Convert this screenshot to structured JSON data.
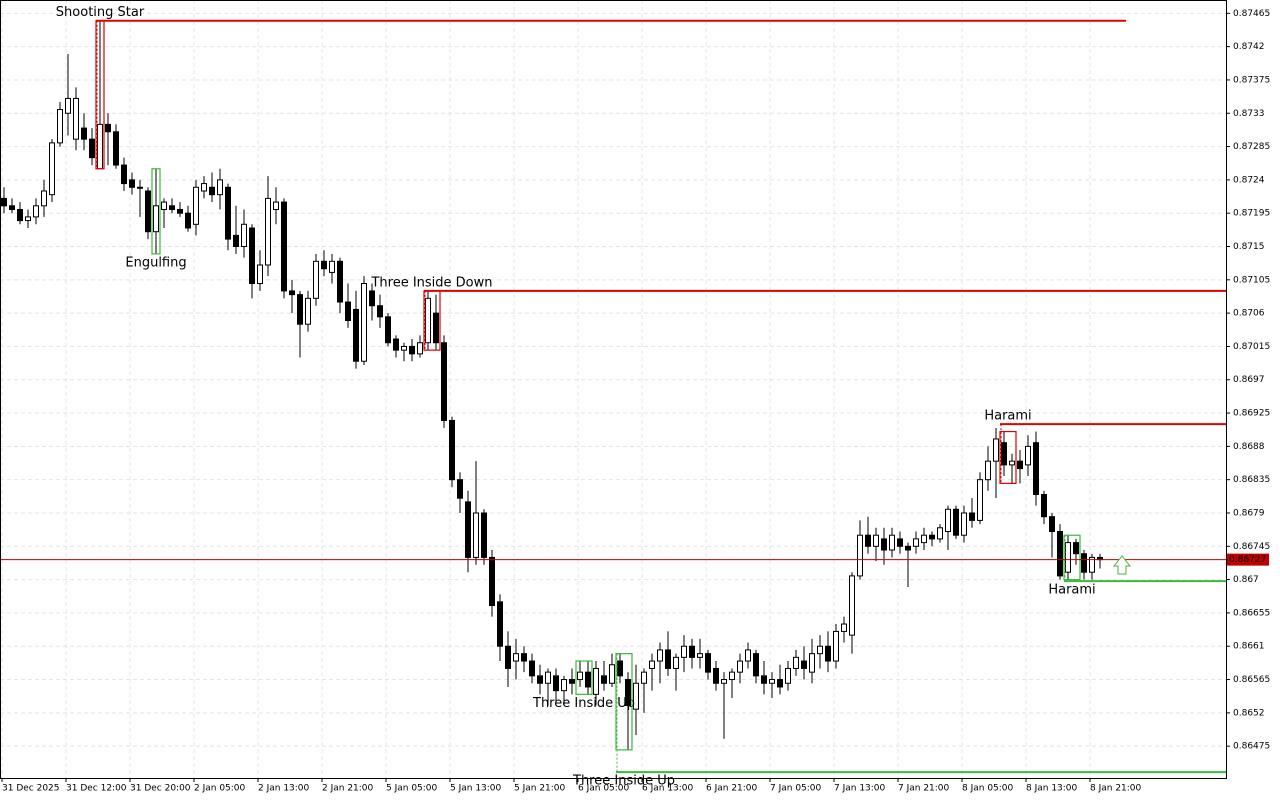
{
  "chart_data": {
    "type": "candlestick",
    "ylim": [
      0.86432,
      0.87483
    ],
    "yticks": [
      0.87465,
      0.8742,
      0.87375,
      0.8733,
      0.87285,
      0.8724,
      0.87195,
      0.8715,
      0.87105,
      0.8706,
      0.87015,
      0.8697,
      0.86925,
      0.8688,
      0.86835,
      0.8679,
      0.86745,
      0.867,
      0.86655,
      0.8661,
      0.86565,
      0.8652,
      0.86475
    ],
    "grid": true,
    "bull_color": "#ffffff",
    "bear_color": "#000000",
    "x": [
      "31 Dec 2025",
      null,
      null,
      null,
      null,
      null,
      null,
      null,
      "31 Dec 12:00",
      null,
      null,
      null,
      null,
      null,
      null,
      null,
      "31 Dec 20:00",
      null,
      null,
      null,
      null,
      null,
      null,
      null,
      "2 Jan 05:00",
      null,
      null,
      null,
      null,
      null,
      null,
      null,
      "2 Jan 13:00",
      null,
      null,
      null,
      null,
      null,
      null,
      null,
      "2 Jan 21:00",
      null,
      null,
      null,
      null,
      null,
      null,
      null,
      "5 Jan 05:00",
      null,
      null,
      null,
      null,
      null,
      null,
      null,
      "5 Jan 13:00",
      null,
      null,
      null,
      null,
      null,
      null,
      null,
      "5 Jan 21:00",
      null,
      null,
      null,
      null,
      null,
      null,
      null,
      "6 Jan 05:00",
      null,
      null,
      null,
      null,
      null,
      null,
      null,
      "6 Jan 13:00",
      null,
      null,
      null,
      null,
      null,
      null,
      null,
      "6 Jan 21:00",
      null,
      null,
      null,
      null,
      null,
      null,
      null,
      "7 Jan 05:00",
      null,
      null,
      null,
      null,
      null,
      null,
      null,
      "7 Jan 13:00",
      null,
      null,
      null,
      null,
      null,
      null,
      null,
      "7 Jan 21:00",
      null,
      null,
      null,
      null,
      null,
      null,
      null,
      "8 Jan 05:00",
      null,
      null,
      null,
      null,
      null,
      null,
      null,
      "8 Jan 13:00",
      null,
      null,
      null,
      null,
      null,
      null,
      null,
      "8 Jan 21:00",
      null
    ],
    "candles": [
      [
        0.87215,
        0.8723,
        0.87195,
        0.87205
      ],
      [
        0.87205,
        0.87215,
        0.87195,
        0.872
      ],
      [
        0.872,
        0.8721,
        0.8718,
        0.87185
      ],
      [
        0.87185,
        0.872,
        0.87175,
        0.8719
      ],
      [
        0.8719,
        0.87215,
        0.8718,
        0.87205
      ],
      [
        0.87205,
        0.8724,
        0.8719,
        0.87225
      ],
      [
        0.8722,
        0.87295,
        0.8721,
        0.8729
      ],
      [
        0.8729,
        0.87345,
        0.87285,
        0.87335
      ],
      [
        0.8733,
        0.8741,
        0.873,
        0.8735
      ],
      [
        0.87295,
        0.87365,
        0.8728,
        0.8735
      ],
      [
        0.8731,
        0.8733,
        0.8728,
        0.87295
      ],
      [
        0.87295,
        0.8731,
        0.8726,
        0.8727
      ],
      [
        0.87255,
        0.87455,
        0.87255,
        0.87315
      ],
      [
        0.87315,
        0.8733,
        0.8726,
        0.87305
      ],
      [
        0.87305,
        0.87315,
        0.87255,
        0.8726
      ],
      [
        0.8726,
        0.8727,
        0.87225,
        0.87235
      ],
      [
        0.8724,
        0.8725,
        0.8722,
        0.8723
      ],
      [
        0.8723,
        0.8724,
        0.8719,
        0.8723
      ],
      [
        0.87225,
        0.8723,
        0.8716,
        0.8717
      ],
      [
        0.8717,
        0.87255,
        0.8714,
        0.87205
      ],
      [
        0.872,
        0.87215,
        0.87175,
        0.8721
      ],
      [
        0.87205,
        0.87215,
        0.87195,
        0.872
      ],
      [
        0.872,
        0.8721,
        0.8719,
        0.87195
      ],
      [
        0.87195,
        0.87205,
        0.8717,
        0.87175
      ],
      [
        0.8718,
        0.8724,
        0.87165,
        0.8723
      ],
      [
        0.87225,
        0.87245,
        0.87215,
        0.87235
      ],
      [
        0.8723,
        0.8725,
        0.8721,
        0.8722
      ],
      [
        0.8722,
        0.87255,
        0.872,
        0.8724
      ],
      [
        0.8723,
        0.87235,
        0.87145,
        0.8716
      ],
      [
        0.87165,
        0.87205,
        0.8714,
        0.8715
      ],
      [
        0.8715,
        0.872,
        0.87135,
        0.8718
      ],
      [
        0.87175,
        0.8718,
        0.8708,
        0.871
      ],
      [
        0.871,
        0.87145,
        0.8709,
        0.87125
      ],
      [
        0.87125,
        0.87245,
        0.8711,
        0.87215
      ],
      [
        0.872,
        0.8723,
        0.8718,
        0.8721
      ],
      [
        0.8721,
        0.87215,
        0.8708,
        0.8709
      ],
      [
        0.8709,
        0.87105,
        0.8706,
        0.87085
      ],
      [
        0.87085,
        0.8709,
        0.87,
        0.87045
      ],
      [
        0.87045,
        0.8709,
        0.87035,
        0.8708
      ],
      [
        0.8708,
        0.8714,
        0.8707,
        0.8713
      ],
      [
        0.8713,
        0.87145,
        0.8711,
        0.8712
      ],
      [
        0.87115,
        0.8714,
        0.871,
        0.8713
      ],
      [
        0.8713,
        0.87135,
        0.8706,
        0.87075
      ],
      [
        0.87075,
        0.871,
        0.8704,
        0.8705
      ],
      [
        0.87065,
        0.8709,
        0.86985,
        0.86995
      ],
      [
        0.86995,
        0.8711,
        0.8699,
        0.871
      ],
      [
        0.8709,
        0.871,
        0.8705,
        0.8707
      ],
      [
        0.8707,
        0.87085,
        0.8704,
        0.87055
      ],
      [
        0.87055,
        0.8706,
        0.87015,
        0.8702
      ],
      [
        0.87025,
        0.8703,
        0.87,
        0.8701
      ],
      [
        0.8701,
        0.8702,
        0.86995,
        0.87015
      ],
      [
        0.87015,
        0.87025,
        0.86995,
        0.87005
      ],
      [
        0.87005,
        0.8703,
        0.87,
        0.8702
      ],
      [
        0.8702,
        0.8709,
        0.8701,
        0.8708
      ],
      [
        0.8706,
        0.87085,
        0.8701,
        0.8702
      ],
      [
        0.8702,
        0.8703,
        0.86905,
        0.86915
      ],
      [
        0.86915,
        0.8692,
        0.86825,
        0.86835
      ],
      [
        0.86835,
        0.86845,
        0.8679,
        0.8681
      ],
      [
        0.86805,
        0.8682,
        0.8671,
        0.8673
      ],
      [
        0.8673,
        0.8686,
        0.8672,
        0.8679
      ],
      [
        0.8679,
        0.86795,
        0.8672,
        0.8673
      ],
      [
        0.8673,
        0.8674,
        0.8665,
        0.86665
      ],
      [
        0.8667,
        0.8668,
        0.8659,
        0.8661
      ],
      [
        0.8661,
        0.8663,
        0.86555,
        0.8658
      ],
      [
        0.8659,
        0.8662,
        0.86565,
        0.866
      ],
      [
        0.866,
        0.8661,
        0.86575,
        0.8659
      ],
      [
        0.8659,
        0.866,
        0.8656,
        0.8657
      ],
      [
        0.8657,
        0.86585,
        0.86545,
        0.8656
      ],
      [
        0.8656,
        0.8658,
        0.8653,
        0.86575
      ],
      [
        0.8657,
        0.8658,
        0.86535,
        0.8655
      ],
      [
        0.8655,
        0.8657,
        0.8653,
        0.86565
      ],
      [
        0.86565,
        0.8658,
        0.86545,
        0.8656
      ],
      [
        0.86565,
        0.8659,
        0.86555,
        0.86575
      ],
      [
        0.86575,
        0.8659,
        0.86545,
        0.86555
      ],
      [
        0.86545,
        0.8659,
        0.8653,
        0.8658
      ],
      [
        0.8657,
        0.8659,
        0.8655,
        0.8656
      ],
      [
        0.8656,
        0.866,
        0.86555,
        0.86585
      ],
      [
        0.8659,
        0.866,
        0.8656,
        0.8657
      ],
      [
        0.86565,
        0.86575,
        0.8647,
        0.8653
      ],
      [
        0.86525,
        0.86585,
        0.8649,
        0.8656
      ],
      [
        0.8656,
        0.8658,
        0.8652,
        0.86575
      ],
      [
        0.8658,
        0.866,
        0.8655,
        0.8659
      ],
      [
        0.8659,
        0.86615,
        0.8656,
        0.86605
      ],
      [
        0.86605,
        0.8663,
        0.8657,
        0.8658
      ],
      [
        0.8658,
        0.866,
        0.8655,
        0.86595
      ],
      [
        0.86595,
        0.86625,
        0.86575,
        0.8661
      ],
      [
        0.8661,
        0.8662,
        0.8658,
        0.86595
      ],
      [
        0.86595,
        0.8662,
        0.8658,
        0.866
      ],
      [
        0.866,
        0.86605,
        0.86565,
        0.86575
      ],
      [
        0.8658,
        0.8659,
        0.8655,
        0.8656
      ],
      [
        0.8656,
        0.86575,
        0.86485,
        0.86565
      ],
      [
        0.86565,
        0.8658,
        0.8654,
        0.86575
      ],
      [
        0.86575,
        0.866,
        0.8656,
        0.8659
      ],
      [
        0.8659,
        0.86615,
        0.8658,
        0.86605
      ],
      [
        0.866,
        0.86605,
        0.8656,
        0.8657
      ],
      [
        0.8657,
        0.8659,
        0.86545,
        0.8656
      ],
      [
        0.8656,
        0.86575,
        0.8654,
        0.86565
      ],
      [
        0.86565,
        0.86585,
        0.86545,
        0.86555
      ],
      [
        0.8656,
        0.8659,
        0.8655,
        0.8658
      ],
      [
        0.8658,
        0.86605,
        0.8657,
        0.86595
      ],
      [
        0.8659,
        0.8661,
        0.86565,
        0.8658
      ],
      [
        0.86575,
        0.8662,
        0.8656,
        0.866
      ],
      [
        0.866,
        0.86625,
        0.8658,
        0.8661
      ],
      [
        0.8661,
        0.8663,
        0.86575,
        0.8659
      ],
      [
        0.8659,
        0.8664,
        0.8658,
        0.8663
      ],
      [
        0.8663,
        0.8665,
        0.86615,
        0.8664
      ],
      [
        0.86625,
        0.8671,
        0.866,
        0.86705
      ],
      [
        0.86705,
        0.8678,
        0.867,
        0.8676
      ],
      [
        0.8676,
        0.86785,
        0.86735,
        0.86745
      ],
      [
        0.86745,
        0.8677,
        0.86725,
        0.8676
      ],
      [
        0.86755,
        0.8677,
        0.8672,
        0.8674
      ],
      [
        0.8674,
        0.8677,
        0.8673,
        0.8676
      ],
      [
        0.86755,
        0.86765,
        0.86735,
        0.86745
      ],
      [
        0.86745,
        0.8675,
        0.8669,
        0.8674
      ],
      [
        0.86745,
        0.86765,
        0.86735,
        0.86755
      ],
      [
        0.8675,
        0.8677,
        0.8674,
        0.8676
      ],
      [
        0.8676,
        0.86765,
        0.86745,
        0.86755
      ],
      [
        0.86755,
        0.86775,
        0.8675,
        0.8677
      ],
      [
        0.86765,
        0.868,
        0.8674,
        0.86795
      ],
      [
        0.86795,
        0.868,
        0.86755,
        0.8676
      ],
      [
        0.8676,
        0.868,
        0.8675,
        0.8679
      ],
      [
        0.8679,
        0.8681,
        0.8677,
        0.8678
      ],
      [
        0.8678,
        0.86845,
        0.86775,
        0.86835
      ],
      [
        0.86835,
        0.8688,
        0.8682,
        0.8686
      ],
      [
        0.8686,
        0.86905,
        0.8681,
        0.8689
      ],
      [
        0.86885,
        0.869,
        0.8684,
        0.86855
      ],
      [
        0.86855,
        0.8687,
        0.8683,
        0.8686
      ],
      [
        0.8686,
        0.86875,
        0.8683,
        0.8685
      ],
      [
        0.86855,
        0.86895,
        0.8684,
        0.8688
      ],
      [
        0.86885,
        0.869,
        0.868,
        0.86815
      ],
      [
        0.86815,
        0.8682,
        0.86775,
        0.86785
      ],
      [
        0.86785,
        0.8679,
        0.8673,
        0.86765
      ],
      [
        0.86765,
        0.86775,
        0.867,
        0.86705
      ],
      [
        0.8671,
        0.8676,
        0.867,
        0.8675
      ],
      [
        0.8675,
        0.86755,
        0.8672,
        0.86735
      ],
      [
        0.86735,
        0.8674,
        0.867,
        0.8671
      ],
      [
        0.8671,
        0.86735,
        0.867,
        0.8673
      ],
      [
        0.8673,
        0.86735,
        0.86715,
        0.86727
      ]
    ],
    "price_line": {
      "value": 0.86727,
      "color": "#c00000"
    },
    "patterns": [
      {
        "name": "Shooting Star",
        "color": "#e00000",
        "bars": [
          12,
          12
        ],
        "level": 0.87455
      },
      {
        "name": "Engulfing",
        "color": "#3cb83c",
        "bars": [
          19,
          19
        ]
      },
      {
        "name": "Three Inside Down",
        "color": "#e00000",
        "bars": [
          53,
          54
        ],
        "level": 0.8709
      },
      {
        "name": "Three Inside Up",
        "color": "#3cb83c",
        "bars": [
          72,
          73
        ]
      },
      {
        "name": "Three Inside Up",
        "color": "#3cb83c",
        "bars": [
          77,
          78
        ],
        "level": 0.8644
      },
      {
        "name": "Harami",
        "color": "#e00000",
        "bars": [
          125,
          126
        ],
        "level": 0.8691
      },
      {
        "name": "Harami",
        "color": "#3cb83c",
        "bars": [
          133,
          134
        ],
        "level": 0.86698
      }
    ]
  }
}
